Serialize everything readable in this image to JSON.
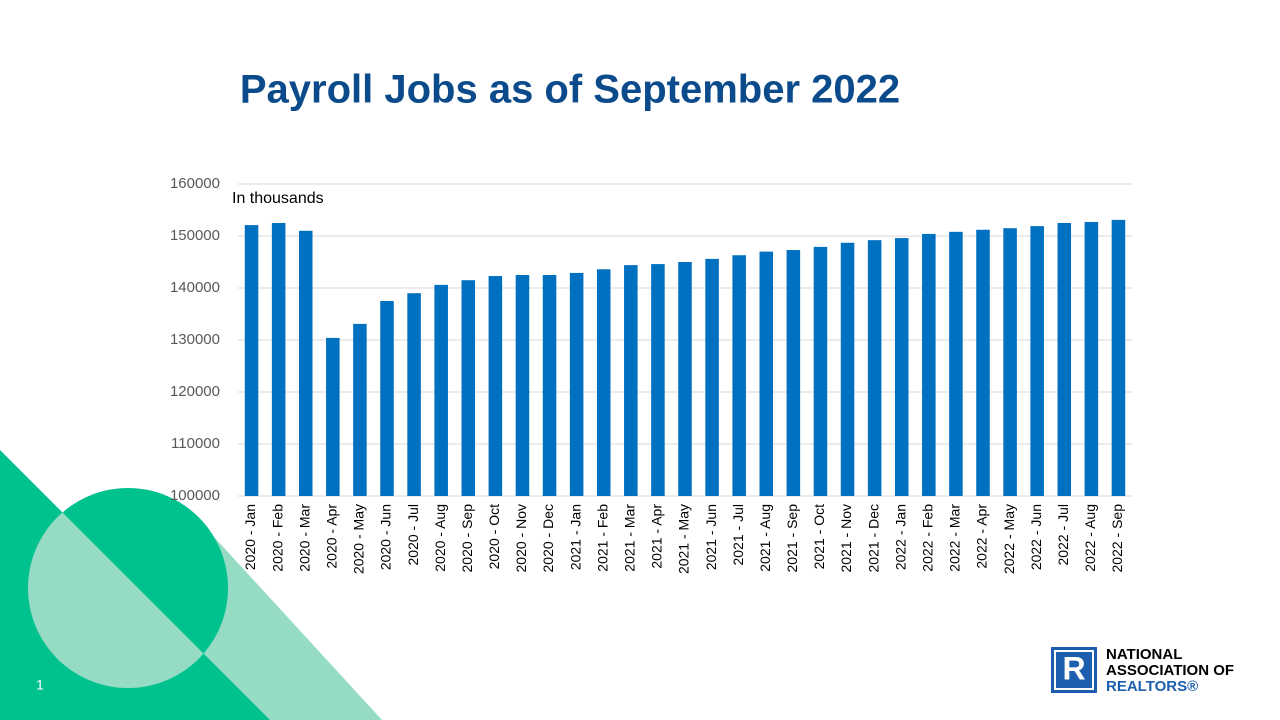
{
  "chart_data": {
    "type": "bar",
    "title": "Payroll Jobs as of September 2022",
    "annotation": "In thousands",
    "categories": [
      "2020 - Jan",
      "2020 - Feb",
      "2020 - Mar",
      "2020 - Apr",
      "2020 - May",
      "2020 - Jun",
      "2020 - Jul",
      "2020 - Aug",
      "2020 - Sep",
      "2020 - Oct",
      "2020 - Nov",
      "2020 - Dec",
      "2021 - Jan",
      "2021 - Feb",
      "2021 - Mar",
      "2021 - Apr",
      "2021 - May",
      "2021 - Jun",
      "2021 - Jul",
      "2021 - Aug",
      "2021 - Sep",
      "2021 - Oct",
      "2021 - Nov",
      "2021 - Dec",
      "2022 - Jan",
      "2022 - Feb",
      "2022 - Mar",
      "2022 - Apr",
      "2022 - May",
      "2022 - Jun",
      "2022 - Jul",
      "2022 - Aug",
      "2022 - Sep"
    ],
    "values": [
      152100,
      152500,
      151000,
      130400,
      133100,
      137500,
      139000,
      140600,
      141500,
      142300,
      142500,
      142500,
      142900,
      143600,
      144400,
      144600,
      145000,
      145600,
      146300,
      147000,
      147300,
      147900,
      148700,
      149200,
      149600,
      150400,
      150800,
      151200,
      151500,
      151900,
      152500,
      152700,
      153100
    ],
    "color": "#0070c0",
    "ylim": [
      100000,
      160000
    ],
    "yticks": [
      100000,
      110000,
      120000,
      130000,
      140000,
      150000,
      160000
    ],
    "grid": true
  },
  "slide_number": "1",
  "logo": {
    "mark": "R",
    "lines": [
      "NATIONAL",
      "ASSOCIATION OF",
      "REALTORS®"
    ]
  }
}
